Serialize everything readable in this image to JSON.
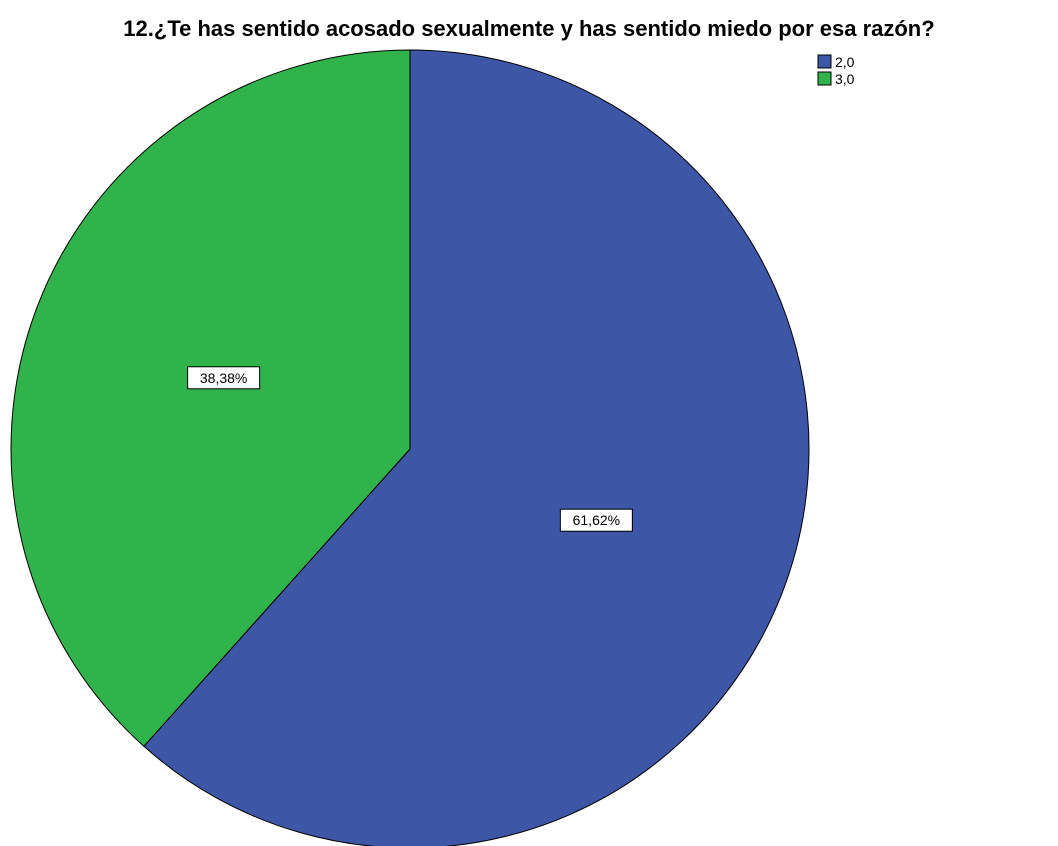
{
  "chart_data": {
    "type": "pie",
    "title": "12.¿Te has sentido acosado sexualmente y has sentido miedo por esa razón?",
    "slices": [
      {
        "name": "2,0",
        "value": 61.62,
        "label": "61,62%",
        "color": "#3d56a6"
      },
      {
        "name": "3,0",
        "value": 38.38,
        "label": "38,38%",
        "color": "#2fb34a"
      }
    ],
    "legend": {
      "placement": "top-right",
      "entries": [
        "2,0",
        "3,0"
      ]
    },
    "start_angle": "12 o'clock",
    "direction": "clockwise"
  }
}
